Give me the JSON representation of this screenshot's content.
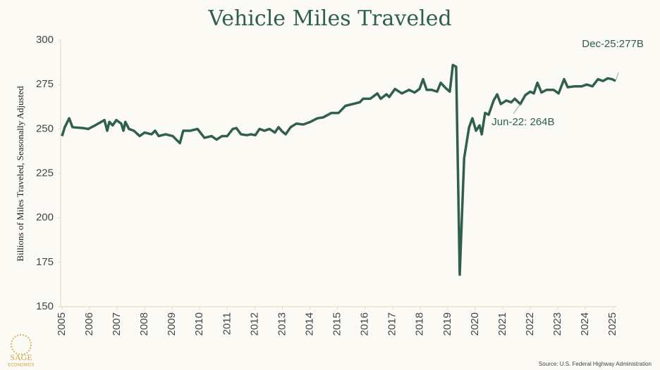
{
  "chart_data": {
    "type": "line",
    "title": "Vehicle Miles Traveled",
    "y_label": "Billions of Miles Traveled, Seasonally Adjusted",
    "source": "Source: U.S. Federal Highway Administration",
    "logo": "SAGE",
    "logo_sub": "ECONOMICS",
    "color": "#2f5f4d",
    "xlim": [
      2004.95,
      2025.15
    ],
    "xticks": [
      2005,
      2006,
      2007,
      2008,
      2009,
      2010,
      2011,
      2012,
      2013,
      2014,
      2015,
      2016,
      2017,
      2018,
      2019,
      2020,
      2021,
      2022,
      2023,
      2024,
      2025
    ],
    "ylim": [
      150,
      300
    ],
    "yticks": [
      150,
      175,
      200,
      225,
      250,
      275,
      300
    ],
    "x": [
      2005.0,
      2005.1,
      2005.26,
      2005.38,
      2005.77,
      2005.95,
      2006.2,
      2006.54,
      2006.64,
      2006.72,
      2006.84,
      2006.97,
      2007.15,
      2007.23,
      2007.3,
      2007.43,
      2007.61,
      2007.82,
      2008.0,
      2008.25,
      2008.38,
      2008.51,
      2008.76,
      2009.02,
      2009.28,
      2009.4,
      2009.66,
      2009.92,
      2010.17,
      2010.43,
      2010.61,
      2010.81,
      2011.0,
      2011.2,
      2011.33,
      2011.5,
      2011.71,
      2011.86,
      2012.02,
      2012.17,
      2012.35,
      2012.53,
      2012.73,
      2012.86,
      2013.0,
      2013.12,
      2013.3,
      2013.51,
      2013.76,
      2014.02,
      2014.27,
      2014.48,
      2014.78,
      2015.04,
      2015.29,
      2015.55,
      2015.81,
      2015.93,
      2016.19,
      2016.45,
      2016.57,
      2016.78,
      2016.88,
      2017.09,
      2017.34,
      2017.6,
      2017.8,
      2017.98,
      2018.11,
      2018.24,
      2018.42,
      2018.62,
      2018.75,
      2018.93,
      2019.08,
      2019.19,
      2019.31,
      2019.44,
      2019.6,
      2019.78,
      2019.9,
      2020.03,
      2020.16,
      2020.24,
      2020.36,
      2020.49,
      2020.67,
      2020.8,
      2020.93,
      2021.13,
      2021.31,
      2021.44,
      2021.64,
      2021.82,
      2022.0,
      2022.13,
      2022.26,
      2022.41,
      2022.59,
      2022.85,
      2023.03,
      2023.23,
      2023.36,
      2023.62,
      2023.87,
      2024.05,
      2024.26,
      2024.46,
      2024.64,
      2024.82,
      2024.97,
      2025.1
    ],
    "values": [
      246,
      251,
      256,
      251,
      250.5,
      250,
      252,
      255,
      249,
      254,
      252,
      255,
      253,
      249,
      254,
      250,
      249,
      246,
      248,
      247,
      249,
      246,
      247,
      246,
      242,
      249,
      249,
      250,
      245,
      246,
      244,
      246,
      246,
      250,
      250.5,
      247,
      246.5,
      247,
      246.5,
      250,
      249,
      250,
      248,
      251,
      248.5,
      247,
      251,
      253,
      252.5,
      254,
      256,
      256.5,
      259,
      259,
      263,
      264,
      265,
      267,
      267,
      270,
      267,
      269.5,
      268,
      272.5,
      270,
      272,
      270.5,
      272.5,
      278,
      272,
      272,
      271,
      276,
      273,
      271,
      286,
      285,
      168,
      233.5,
      251,
      256,
      249,
      252,
      247,
      259,
      258,
      266,
      269.5,
      264,
      266,
      265,
      267,
      264,
      269,
      271,
      270,
      276,
      270.5,
      272,
      272,
      270,
      278,
      273.5,
      274,
      274,
      275,
      274,
      278,
      277,
      278.5,
      278,
      277
    ],
    "annotations": [
      {
        "text": "Jun-22: 264B",
        "x": 2021.64,
        "y": 264
      },
      {
        "text": "Dec-25:277B",
        "x": 2025.1,
        "y": 277
      }
    ]
  }
}
